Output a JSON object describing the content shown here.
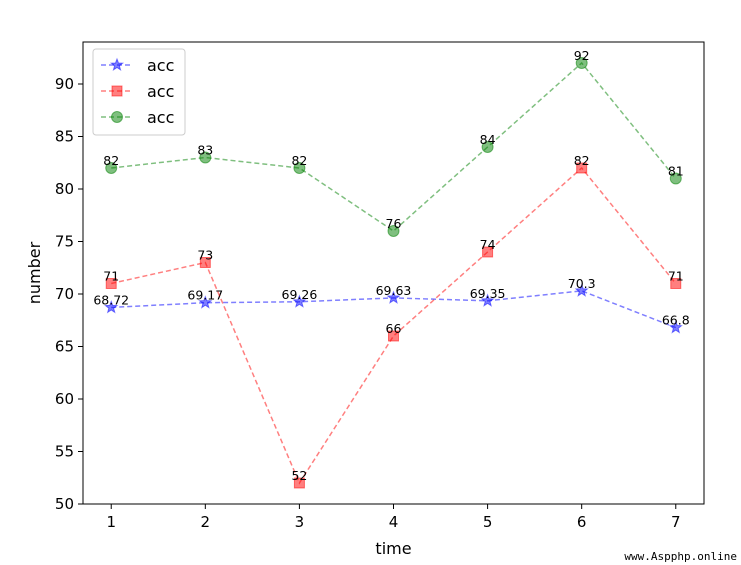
{
  "chart_data": {
    "type": "line",
    "xlabel": "time",
    "ylabel": "number",
    "x": [
      1,
      2,
      3,
      4,
      5,
      6,
      7
    ],
    "xlim": [
      0.7,
      7.3
    ],
    "ylim": [
      50,
      94
    ],
    "yticks": [
      50,
      55,
      60,
      65,
      70,
      75,
      80,
      85,
      90
    ],
    "grid": false,
    "legend_position": "top-left",
    "series": [
      {
        "name": "acc",
        "color": "#0000ff",
        "marker": "star",
        "linestyle": "dashed",
        "values": [
          68.72,
          69.17,
          69.26,
          69.63,
          69.35,
          70.3,
          66.8
        ],
        "labels": [
          "68.72",
          "69.17",
          "69.26",
          "69.63",
          "69.35",
          "70.3",
          "66.8"
        ]
      },
      {
        "name": "acc",
        "color": "#ff0000",
        "marker": "square",
        "linestyle": "dashed",
        "values": [
          71,
          73,
          52,
          66,
          74,
          82,
          71
        ],
        "labels": [
          "71",
          "73",
          "52",
          "66",
          "74",
          "82",
          "71"
        ]
      },
      {
        "name": "acc",
        "color": "#008000",
        "marker": "circle",
        "linestyle": "dashed",
        "values": [
          82,
          83,
          82,
          76,
          84,
          92,
          81
        ],
        "labels": [
          "82",
          "83",
          "82",
          "76",
          "84",
          "92",
          "81"
        ]
      }
    ]
  },
  "watermark": "www.Aspphp.online"
}
